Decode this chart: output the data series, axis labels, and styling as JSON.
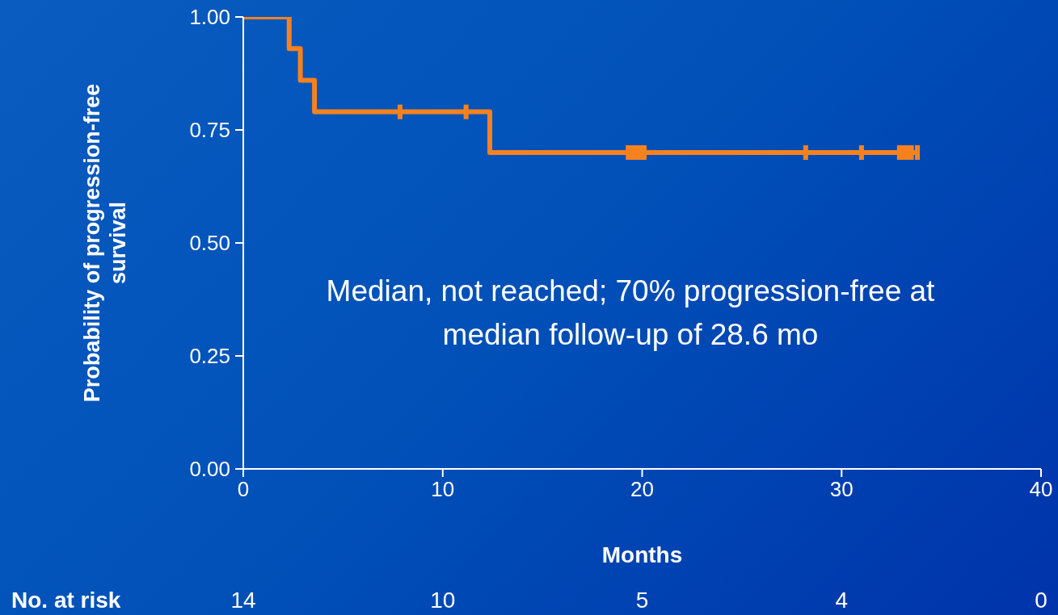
{
  "chart_data": {
    "type": "step",
    "xlabel": "Months",
    "ylabel": "Probability of progression-free survival",
    "xlim": [
      0,
      40
    ],
    "xticks": [
      0,
      10,
      20,
      30,
      40
    ],
    "ylim": [
      0,
      1
    ],
    "yticks": [
      {
        "value": 0,
        "label": "0.00"
      },
      {
        "value": 0.25,
        "label": "0.25"
      },
      {
        "value": 0.5,
        "label": "0.50"
      },
      {
        "value": 0.75,
        "label": "0.75"
      },
      {
        "value": 1,
        "label": "1.00"
      }
    ],
    "grid": false,
    "series": [
      {
        "color": "#f5821f",
        "marker": "none",
        "x": [
          0,
          2.3,
          2.86,
          3.57,
          12.36,
          33.8
        ],
        "values": [
          1,
          0.93,
          0.86,
          0.79,
          0.7,
          0.7
        ]
      },
      {
        "type": "scatter",
        "color": "#f5821f",
        "x": [
          7.86,
          11.17,
          19.3,
          19.5,
          19.7,
          19.9,
          20.1,
          28.2,
          31.0,
          32.9,
          33.1,
          33.3,
          33.5,
          33.8
        ],
        "values": [
          0.79,
          0.79,
          0.7,
          0.7,
          0.7,
          0.7,
          0.7,
          0.7,
          0.7,
          0.7,
          0.7,
          0.7,
          0.7,
          0.7
        ]
      }
    ],
    "annotations": [
      "Median, not reached; 70% progression-free at median follow-up of 28.6 mo",
      "No. at risk",
      "14",
      "10",
      "5",
      "4",
      "0"
    ]
  }
}
